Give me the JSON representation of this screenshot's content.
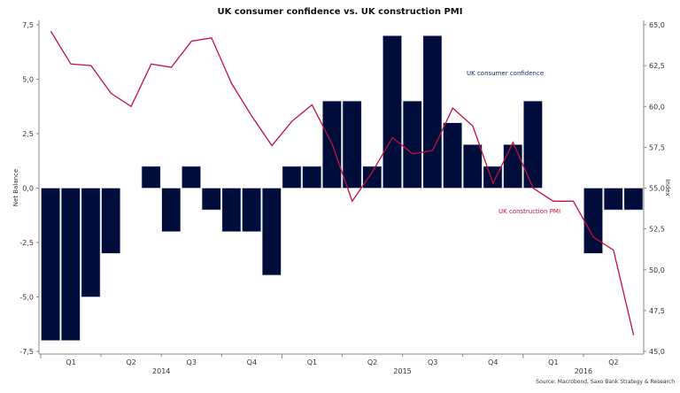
{
  "chart_data": {
    "type": "bar",
    "title": "UK consumer confidence vs. UK construction PMI",
    "ylabel": "Net Balance",
    "ylabel_right": "Index",
    "ylim": [
      -7.5,
      7.5
    ],
    "ylim_right": [
      45.0,
      65.0
    ],
    "yticks": [
      "7,5",
      "5,0",
      "2,5",
      "0,0",
      "-2,5",
      "-5,0",
      "-7,5"
    ],
    "yticks_values": [
      7.5,
      5,
      2.5,
      0,
      -2.5,
      -5,
      -7.5
    ],
    "yticks_right": [
      "65,0",
      "62,5",
      "60,0",
      "57,5",
      "55,0",
      "52,5",
      "50,0",
      "47,5",
      "45,0"
    ],
    "yticks_right_values": [
      65,
      62.5,
      60,
      57.5,
      55,
      52.5,
      50,
      47.5,
      45
    ],
    "quarter_labels": [
      "Q1",
      "Q2",
      "Q3",
      "Q4",
      "Q1",
      "Q2",
      "Q3",
      "Q4",
      "Q1",
      "Q2"
    ],
    "year_labels": [
      "2014",
      "2015",
      "2016"
    ],
    "months": [
      "2014-01",
      "2014-02",
      "2014-03",
      "2014-04",
      "2014-05",
      "2014-06",
      "2014-07",
      "2014-08",
      "2014-09",
      "2014-10",
      "2014-11",
      "2014-12",
      "2015-01",
      "2015-02",
      "2015-03",
      "2015-04",
      "2015-05",
      "2015-06",
      "2015-07",
      "2015-08",
      "2015-09",
      "2015-10",
      "2015-11",
      "2015-12",
      "2016-01",
      "2016-02",
      "2016-03",
      "2016-04",
      "2016-05",
      "2016-06"
    ],
    "series": [
      {
        "name": "UK consumer confidence",
        "type": "bar",
        "axis": "left",
        "color": "#000d3a",
        "values": [
          -7,
          -7,
          -5,
          -3,
          0,
          1,
          -2,
          1,
          -1,
          -2,
          -2,
          -4,
          1,
          1,
          4,
          4,
          1,
          7,
          4,
          7,
          3,
          2,
          1,
          2,
          4,
          0,
          0,
          -3,
          -1,
          -1
        ]
      },
      {
        "name": "UK construction PMI",
        "type": "line",
        "axis": "right",
        "color": "#c0103c",
        "values": [
          64.6,
          62.6,
          62.5,
          60.8,
          60.0,
          62.6,
          62.4,
          64.0,
          64.2,
          61.4,
          59.4,
          57.6,
          59.1,
          60.1,
          57.7,
          54.2,
          56.0,
          58.1,
          57.1,
          57.3,
          59.9,
          58.8,
          55.3,
          57.8,
          55.0,
          54.2,
          54.2,
          52.0,
          51.2,
          46.0
        ]
      }
    ],
    "annotations": [
      "UK consumer confidence",
      "UK construction PMI"
    ],
    "source": "Source: Macrobond, Saxo Bank Strategy & Research",
    "grid": false,
    "legend": "inline-labels"
  }
}
